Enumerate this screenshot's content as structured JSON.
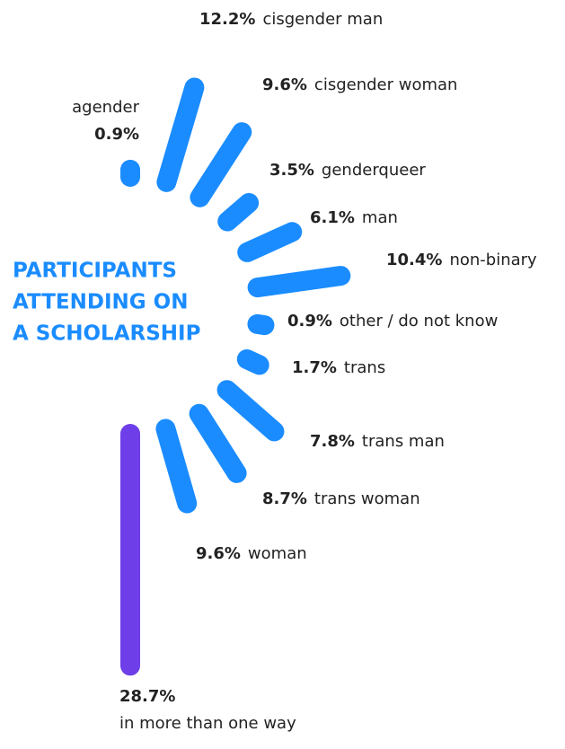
{
  "chart_data": {
    "type": "radial-bar",
    "title": [
      "PARTICIPANTS",
      "ATTENDING ON",
      "A SCHOLARSHIP"
    ],
    "categories": [
      "agender",
      "cisgender man",
      "cisgender woman",
      "genderqueer",
      "man",
      "non-binary",
      "other / do not know",
      "trans",
      "trans man",
      "trans woman",
      "woman",
      "in more than one way"
    ],
    "values": [
      0.9,
      12.2,
      9.6,
      3.5,
      6.1,
      10.4,
      0.9,
      1.7,
      7.8,
      8.7,
      9.6,
      28.7
    ],
    "value_labels": [
      "0.9%",
      "12.2%",
      "9.6%",
      "3.5%",
      "6.1%",
      "10.4%",
      "0.9%",
      "1.7%",
      "7.8%",
      "8.7%",
      "9.6%",
      "28.7%"
    ],
    "colors": [
      "#1a8cff",
      "#1a8cff",
      "#1a8cff",
      "#1a8cff",
      "#1a8cff",
      "#1a8cff",
      "#1a8cff",
      "#1a8cff",
      "#1a8cff",
      "#1a8cff",
      "#1a8cff",
      "#6e3fe8"
    ]
  }
}
